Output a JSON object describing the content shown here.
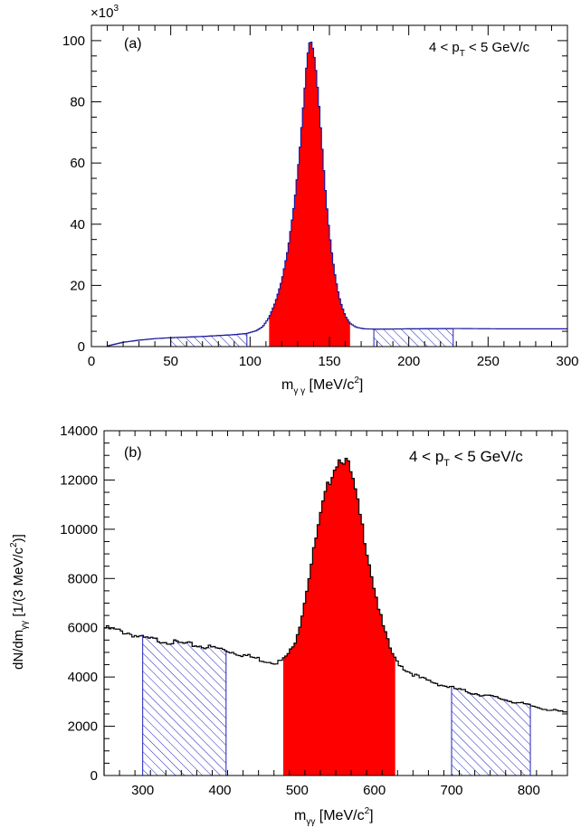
{
  "figure": {
    "panel_a": {
      "panel_label": "(a)",
      "pt_range": "4 < p",
      "pt_sub": "T",
      "pt_range_end": " < 5 GeV/c",
      "exponent_base": "×10",
      "exponent_power": "3",
      "xaxis": {
        "label_main": "m",
        "label_sub": "γ γ",
        "label_unit": " [MeV/c",
        "label_sup": "2",
        "label_close": "]"
      }
    },
    "panel_b": {
      "panel_label": "(b)",
      "pt_range": "4 < p",
      "pt_sub": "T",
      "pt_range_end": " < 5 GeV/c",
      "xaxis": {
        "label_main": "m",
        "label_sub": "γγ",
        "label_unit": " [MeV/c",
        "label_sup": "2",
        "label_close": "]"
      },
      "yaxis": {
        "label_main": "dN/dm",
        "label_sub": "γγ",
        "label_unit": " [1/(3 MeV/c",
        "label_sup": "2",
        "label_close": ")]"
      }
    }
  },
  "colors": {
    "signal_fill": "#ff0000",
    "sideband_hatch": "#1f1fbf",
    "hist_line_a": "#1a1a9a",
    "hist_line_b": "#000000"
  },
  "chart_data": [
    {
      "type": "histogram",
      "id": "a",
      "xlim": [
        0,
        300
      ],
      "ylim": [
        0,
        105
      ],
      "y_multiplier": 1000,
      "x_ticks": [
        0,
        50,
        100,
        150,
        200,
        250,
        300
      ],
      "y_ticks": [
        0,
        20,
        40,
        60,
        80,
        100
      ],
      "x_minor_step": 10,
      "y_minor_step": 5,
      "curve": [
        [
          10,
          0.2
        ],
        [
          15,
          0.8
        ],
        [
          20,
          1.4
        ],
        [
          30,
          2.1
        ],
        [
          40,
          2.6
        ],
        [
          50,
          2.9
        ],
        [
          60,
          3.1
        ],
        [
          70,
          3.3
        ],
        [
          80,
          3.6
        ],
        [
          90,
          3.9
        ],
        [
          98,
          4.3
        ],
        [
          104,
          5.2
        ],
        [
          108,
          6.5
        ],
        [
          112,
          9.5
        ],
        [
          116,
          14.5
        ],
        [
          120,
          21.5
        ],
        [
          124,
          32.0
        ],
        [
          128,
          47.0
        ],
        [
          131,
          62.0
        ],
        [
          133.5,
          78.0
        ],
        [
          135.5,
          91.0
        ],
        [
          137,
          98.5
        ],
        [
          138,
          100.0
        ],
        [
          139,
          99.0
        ],
        [
          141,
          93.0
        ],
        [
          143,
          82.0
        ],
        [
          145,
          68.0
        ],
        [
          147,
          54.0
        ],
        [
          149,
          42.0
        ],
        [
          151,
          32.5
        ],
        [
          153,
          25.0
        ],
        [
          155,
          19.0
        ],
        [
          157,
          14.5
        ],
        [
          160,
          10.0
        ],
        [
          163,
          7.6
        ],
        [
          167,
          6.3
        ],
        [
          172,
          5.8
        ],
        [
          180,
          5.7
        ],
        [
          200,
          5.8
        ],
        [
          230,
          5.9
        ],
        [
          260,
          5.8
        ],
        [
          300,
          5.8
        ]
      ],
      "signal_region": [
        112,
        163
      ],
      "sidebands": [
        [
          50,
          98
        ],
        [
          178,
          228
        ]
      ]
    },
    {
      "type": "histogram",
      "id": "b",
      "xlim": [
        250,
        850
      ],
      "ylim": [
        0,
        14000
      ],
      "x_ticks": [
        300,
        400,
        500,
        600,
        700,
        800
      ],
      "y_ticks": [
        0,
        2000,
        4000,
        6000,
        8000,
        10000,
        12000,
        14000
      ],
      "x_minor_step": 20,
      "y_minor_step": 500,
      "bin_width": 3,
      "curve": [
        [
          250,
          6000
        ],
        [
          280,
          5800
        ],
        [
          300,
          5580
        ],
        [
          330,
          5450
        ],
        [
          360,
          5320
        ],
        [
          400,
          5150
        ],
        [
          430,
          4900
        ],
        [
          460,
          4650
        ],
        [
          475,
          4600
        ],
        [
          482,
          4700
        ],
        [
          495,
          5200
        ],
        [
          505,
          6300
        ],
        [
          515,
          8000
        ],
        [
          525,
          9700
        ],
        [
          535,
          11200
        ],
        [
          545,
          12300
        ],
        [
          552,
          12750
        ],
        [
          558,
          12950
        ],
        [
          565,
          12700
        ],
        [
          572,
          12000
        ],
        [
          580,
          10800
        ],
        [
          590,
          9200
        ],
        [
          600,
          7600
        ],
        [
          610,
          6200
        ],
        [
          620,
          5200
        ],
        [
          627,
          4700
        ],
        [
          640,
          4300
        ],
        [
          660,
          3950
        ],
        [
          690,
          3650
        ],
        [
          720,
          3400
        ],
        [
          760,
          3150
        ],
        [
          800,
          2850
        ],
        [
          830,
          2650
        ],
        [
          850,
          2550
        ]
      ],
      "signal_region": [
        482,
        627
      ],
      "sidebands": [
        [
          300,
          408
        ],
        [
          700,
          802
        ]
      ]
    }
  ]
}
